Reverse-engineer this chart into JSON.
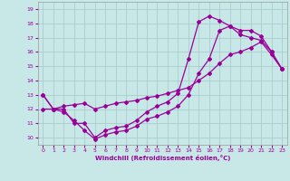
{
  "xlabel": "Windchill (Refroidissement éolien,°C)",
  "xlim": [
    -0.5,
    23.5
  ],
  "ylim": [
    9.5,
    19.5
  ],
  "xticks": [
    0,
    1,
    2,
    3,
    4,
    5,
    6,
    7,
    8,
    9,
    10,
    11,
    12,
    13,
    14,
    15,
    16,
    17,
    18,
    19,
    20,
    21,
    22,
    23
  ],
  "yticks": [
    10,
    11,
    12,
    13,
    14,
    15,
    16,
    17,
    18,
    19
  ],
  "line_color": "#990099",
  "bg_color": "#c8e8e8",
  "grid_color": "#aacccc",
  "line1_x": [
    0,
    1,
    2,
    3,
    4,
    5,
    6,
    7,
    8,
    9,
    10,
    11,
    12,
    13,
    14,
    15,
    16,
    17,
    18,
    19,
    20,
    21,
    22,
    23
  ],
  "line1_y": [
    13,
    12,
    12,
    11,
    11,
    10,
    10.5,
    10.7,
    10.8,
    11.2,
    11.8,
    12.2,
    12.5,
    13.1,
    15.5,
    18.1,
    18.5,
    18.2,
    17.8,
    17.5,
    17.5,
    17.1,
    16.0,
    14.8
  ],
  "line2_x": [
    0,
    1,
    2,
    3,
    4,
    5,
    6,
    7,
    8,
    9,
    10,
    11,
    12,
    13,
    14,
    15,
    16,
    17,
    18,
    19,
    20,
    21,
    22,
    23
  ],
  "line2_y": [
    13,
    12,
    11.8,
    11.2,
    10.5,
    9.9,
    10.2,
    10.4,
    10.5,
    10.8,
    11.3,
    11.5,
    11.8,
    12.2,
    13.0,
    14.5,
    15.5,
    17.5,
    17.8,
    17.2,
    17.0,
    16.8,
    16.0,
    14.8
  ],
  "line3_x": [
    0,
    1,
    2,
    3,
    4,
    5,
    6,
    7,
    8,
    9,
    10,
    11,
    12,
    13,
    14,
    15,
    16,
    17,
    18,
    19,
    20,
    21,
    22,
    23
  ],
  "line3_y": [
    12.0,
    12.0,
    12.2,
    12.3,
    12.4,
    12.0,
    12.2,
    12.4,
    12.5,
    12.6,
    12.8,
    12.9,
    13.1,
    13.3,
    13.5,
    14.0,
    14.5,
    15.2,
    15.8,
    16.0,
    16.3,
    16.7,
    15.8,
    14.8
  ]
}
